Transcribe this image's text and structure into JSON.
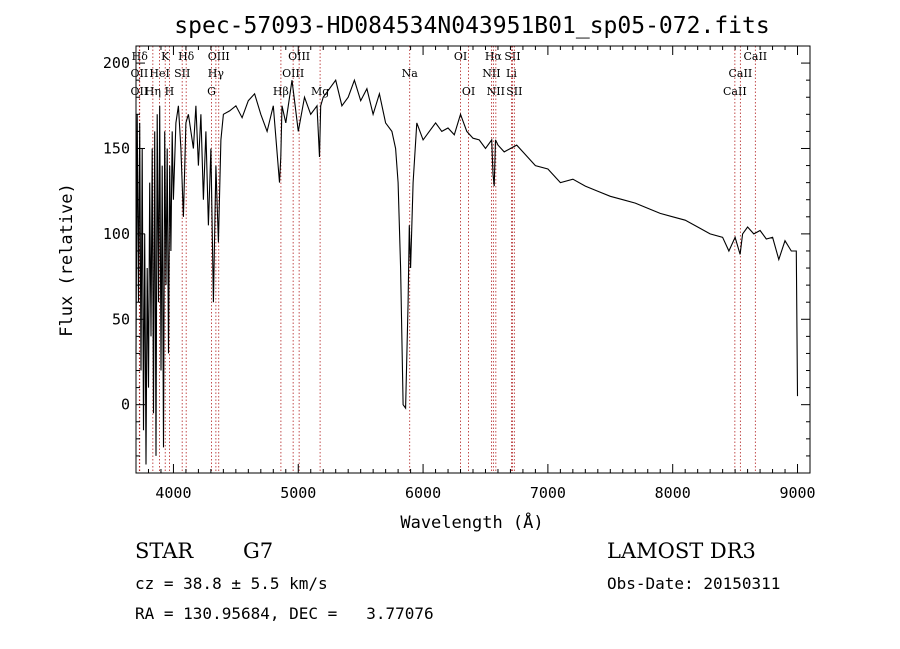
{
  "chart_data": {
    "type": "line",
    "title": "spec-57093-HD084534N043951B01_sp05-072.fits",
    "xlabel": "Wavelength (Å)",
    "ylabel": "Flux (relative)",
    "xlim": [
      3700,
      9100
    ],
    "ylim": [
      -40,
      210
    ],
    "xticks": [
      4000,
      5000,
      6000,
      7000,
      8000,
      9000
    ],
    "yticks": [
      0,
      50,
      100,
      150,
      200
    ],
    "series": [
      {
        "name": "spectrum",
        "x": [
          3700,
          3710,
          3720,
          3730,
          3740,
          3750,
          3760,
          3770,
          3780,
          3790,
          3800,
          3810,
          3820,
          3830,
          3840,
          3850,
          3860,
          3870,
          3880,
          3890,
          3900,
          3910,
          3920,
          3930,
          3940,
          3950,
          3960,
          3970,
          3980,
          3990,
          4000,
          4020,
          4040,
          4060,
          4080,
          4100,
          4120,
          4140,
          4160,
          4180,
          4200,
          4220,
          4240,
          4260,
          4280,
          4300,
          4320,
          4340,
          4360,
          4380,
          4400,
          4450,
          4500,
          4550,
          4600,
          4650,
          4700,
          4750,
          4800,
          4850,
          4860,
          4870,
          4900,
          4950,
          5000,
          5050,
          5100,
          5150,
          5170,
          5180,
          5200,
          5250,
          5300,
          5350,
          5400,
          5450,
          5500,
          5550,
          5600,
          5650,
          5700,
          5750,
          5780,
          5800,
          5820,
          5840,
          5860,
          5880,
          5890,
          5900,
          5920,
          5950,
          6000,
          6050,
          6100,
          6150,
          6200,
          6250,
          6300,
          6350,
          6400,
          6450,
          6500,
          6550,
          6560,
          6570,
          6580,
          6600,
          6650,
          6700,
          6750,
          6800,
          6900,
          7000,
          7100,
          7200,
          7300,
          7400,
          7500,
          7600,
          7700,
          7800,
          7900,
          8000,
          8100,
          8200,
          8300,
          8400,
          8450,
          8500,
          8540,
          8560,
          8600,
          8650,
          8700,
          8750,
          8800,
          8850,
          8900,
          8950,
          8990,
          9000
        ],
        "y": [
          30,
          170,
          60,
          165,
          20,
          150,
          -15,
          100,
          -35,
          80,
          10,
          130,
          40,
          150,
          -5,
          160,
          -30,
          170,
          60,
          175,
          20,
          140,
          -25,
          160,
          70,
          150,
          30,
          140,
          90,
          160,
          120,
          165,
          175,
          150,
          110,
          165,
          170,
          160,
          150,
          175,
          140,
          170,
          120,
          160,
          105,
          150,
          60,
          140,
          95,
          155,
          170,
          172,
          175,
          168,
          178,
          182,
          170,
          160,
          175,
          130,
          145,
          175,
          165,
          190,
          160,
          180,
          170,
          175,
          145,
          175,
          180,
          185,
          190,
          175,
          180,
          190,
          178,
          185,
          170,
          182,
          165,
          160,
          150,
          130,
          80,
          0,
          -2,
          60,
          105,
          80,
          130,
          165,
          155,
          160,
          165,
          160,
          162,
          158,
          170,
          160,
          156,
          155,
          150,
          155,
          135,
          128,
          155,
          152,
          148,
          150,
          152,
          148,
          140,
          138,
          130,
          132,
          128,
          125,
          122,
          120,
          118,
          115,
          112,
          110,
          108,
          104,
          100,
          98,
          90,
          98,
          88,
          100,
          104,
          100,
          102,
          97,
          98,
          85,
          96,
          90,
          90,
          5
        ]
      }
    ],
    "annotations": {
      "lines": [
        {
          "label": "Hδ",
          "x": 3730,
          "row": 1
        },
        {
          "label": "OII",
          "x": 3727,
          "row": 2
        },
        {
          "label": "OII",
          "x": 3727,
          "row": 3
        },
        {
          "label": "K",
          "x": 3934,
          "row": 1
        },
        {
          "label": "HeI",
          "x": 3889,
          "row": 2
        },
        {
          "label": "Hη",
          "x": 3835,
          "row": 3
        },
        {
          "label": "SII",
          "x": 4070,
          "row": 2
        },
        {
          "label": "H",
          "x": 3968,
          "row": 3
        },
        {
          "label": "Hδ",
          "x": 4102,
          "row": 1
        },
        {
          "label": "OIII",
          "x": 4363,
          "row": 1
        },
        {
          "label": "Hγ",
          "x": 4340,
          "row": 2
        },
        {
          "label": "G",
          "x": 4305,
          "row": 3
        },
        {
          "label": "OIII",
          "x": 5007,
          "row": 1
        },
        {
          "label": "OIII",
          "x": 4959,
          "row": 2
        },
        {
          "label": "Hβ",
          "x": 4861,
          "row": 3
        },
        {
          "label": "Mg",
          "x": 5175,
          "row": 3
        },
        {
          "label": "Na",
          "x": 5893,
          "row": 2
        },
        {
          "label": "OI",
          "x": 6300,
          "row": 1
        },
        {
          "label": "OI",
          "x": 6364,
          "row": 3
        },
        {
          "label": "Hα",
          "x": 6563,
          "row": 1
        },
        {
          "label": "SII",
          "x": 6716,
          "row": 1
        },
        {
          "label": "NII",
          "x": 6548,
          "row": 2
        },
        {
          "label": "Li",
          "x": 6708,
          "row": 2
        },
        {
          "label": "NII",
          "x": 6583,
          "row": 3
        },
        {
          "label": "SII",
          "x": 6731,
          "row": 3
        },
        {
          "label": "CaII",
          "x": 8662,
          "row": 1
        },
        {
          "label": "CaII",
          "x": 8542,
          "row": 2
        },
        {
          "label": "CaII",
          "x": 8498,
          "row": 3
        }
      ]
    }
  },
  "info": {
    "object_class": "STAR",
    "subclass": "G7",
    "survey": "LAMOST DR3",
    "cz": "cz = 38.8 ± 5.5 km/s",
    "obs_date": "Obs-Date: 20150311",
    "coords": "RA = 130.95684, DEC =   3.77076"
  },
  "colors": {
    "axis": "#000000",
    "line_marker": "#b22222",
    "spectrum": "#000000"
  }
}
